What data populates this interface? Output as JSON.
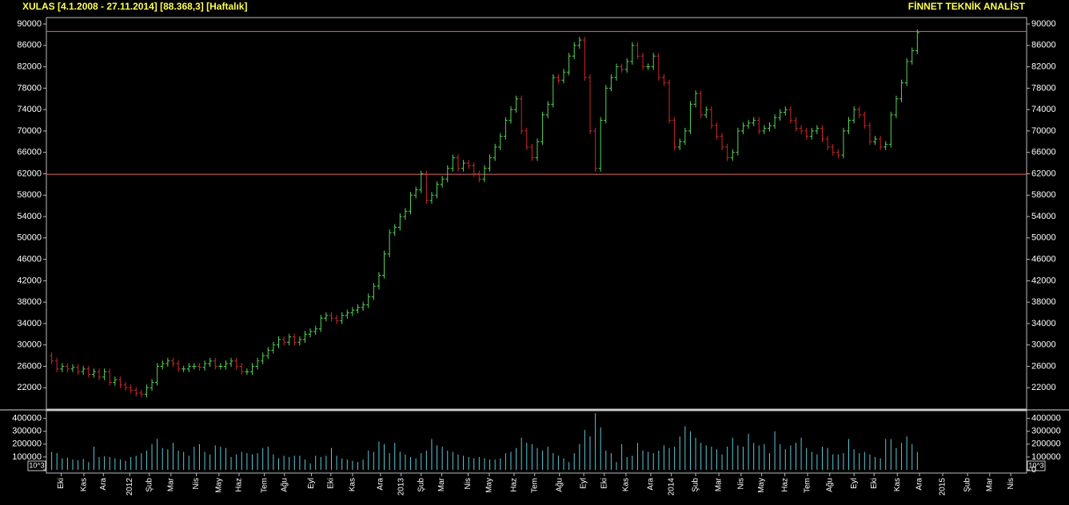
{
  "chart_data": {
    "type": "ohlc",
    "title": "XULAS  [4.1.2008 - 27.11.2014]  [88.368,3]  [Haftalık]",
    "subtitle": "FİNNET TEKNİK ANALİST",
    "up_color": "#55d855",
    "down_color": "#d02828",
    "volume_color": "#5cc8d8",
    "hline_color": "#e06a6a",
    "open": [
      28000,
      27000,
      25500,
      26000,
      25500,
      25800,
      25000,
      25500,
      24500,
      25000,
      24000,
      25000,
      23000,
      23500,
      22500,
      22000,
      21500,
      21000,
      20800,
      22000,
      23000,
      26000,
      26500,
      27000,
      26500,
      25500,
      25500,
      26000,
      26000,
      25800,
      26500,
      27000,
      26000,
      26000,
      26500,
      27000,
      26000,
      25000,
      25000,
      26000,
      27000,
      28000,
      29000,
      30000,
      31000,
      30500,
      31500,
      30500,
      31000,
      32000,
      32500,
      33000,
      35000,
      35500,
      35000,
      34500,
      35500,
      36000,
      36500,
      37000,
      37500,
      39000,
      41000,
      43000,
      47000,
      51000,
      52000,
      54000,
      55000,
      58000,
      59000,
      62000,
      57000,
      58000,
      60000,
      61000,
      63000,
      65000,
      63000,
      64000,
      63500,
      62000,
      61000,
      63000,
      65000,
      67000,
      69000,
      72000,
      74000,
      76000,
      70000,
      67000,
      65000,
      68000,
      73000,
      75000,
      80000,
      79500,
      81000,
      84000,
      86000,
      87000,
      80000,
      70000,
      63000,
      72000,
      78000,
      80000,
      82000,
      81500,
      83000,
      86000,
      84000,
      82000,
      82000,
      84000,
      80000,
      79000,
      72000,
      67000,
      68000,
      70000,
      75000,
      77000,
      73000,
      74000,
      71000,
      69000,
      67000,
      65000,
      66000,
      70000,
      71000,
      71500,
      72000,
      70000,
      70500,
      71000,
      72500,
      73500,
      74000,
      72000,
      70500,
      70000,
      69000,
      70000,
      70500,
      68500,
      67000,
      66000,
      65500,
      70000,
      72000,
      74000,
      73000,
      71000,
      68000,
      68500,
      67000,
      67500,
      73000,
      76000,
      79000,
      83000,
      85000
    ],
    "high": [
      28600,
      27600,
      26600,
      26600,
      26400,
      26400,
      26100,
      26100,
      25600,
      25600,
      25600,
      25600,
      24100,
      24100,
      23100,
      22600,
      22100,
      21600,
      22600,
      23600,
      26600,
      27100,
      27600,
      27600,
      27100,
      26100,
      26600,
      26600,
      26600,
      27100,
      27600,
      27600,
      26600,
      27100,
      27600,
      27600,
      26600,
      25600,
      26600,
      27600,
      28600,
      29600,
      30600,
      31600,
      31600,
      32100,
      32100,
      31600,
      32600,
      33100,
      33600,
      35600,
      36100,
      36100,
      35600,
      36100,
      36600,
      37100,
      37600,
      38100,
      39600,
      41600,
      43600,
      47600,
      51600,
      52600,
      54600,
      55600,
      58600,
      59600,
      62600,
      62600,
      58600,
      60600,
      61600,
      63600,
      65600,
      65600,
      64600,
      64600,
      64100,
      62600,
      63600,
      65600,
      67600,
      69600,
      72600,
      74600,
      76600,
      76600,
      70600,
      67600,
      68600,
      73600,
      75600,
      80600,
      80600,
      81600,
      84600,
      86600,
      87600,
      87600,
      80600,
      70600,
      72600,
      78600,
      80600,
      82600,
      82600,
      83600,
      86600,
      86600,
      84600,
      82600,
      84600,
      84600,
      80600,
      79600,
      72600,
      68600,
      70600,
      75600,
      77600,
      77600,
      74600,
      74600,
      71600,
      69600,
      67600,
      66600,
      70600,
      71600,
      72100,
      72600,
      72600,
      71100,
      71600,
      73100,
      74100,
      74600,
      74600,
      72600,
      71100,
      70600,
      70600,
      71100,
      71100,
      69100,
      67600,
      66600,
      70600,
      72600,
      74600,
      74600,
      73600,
      71600,
      69100,
      69100,
      68100,
      73600,
      76600,
      79600,
      83600,
      85600,
      89000
    ],
    "low": [
      26400,
      24900,
      24900,
      24900,
      24900,
      24400,
      24400,
      23900,
      23900,
      23400,
      23400,
      22400,
      22400,
      21900,
      21400,
      20900,
      20400,
      20200,
      20200,
      21400,
      22400,
      25400,
      25900,
      25900,
      24900,
      24900,
      24900,
      25400,
      25200,
      25200,
      25900,
      25400,
      25400,
      25400,
      25900,
      25400,
      24400,
      24400,
      24400,
      25400,
      26400,
      27400,
      28400,
      29400,
      29900,
      29900,
      29900,
      29900,
      30400,
      31400,
      31900,
      32400,
      34400,
      34400,
      33900,
      33900,
      34900,
      35400,
      35900,
      36400,
      36900,
      38400,
      40400,
      42400,
      46400,
      50400,
      51400,
      53400,
      54400,
      57400,
      58400,
      56400,
      56400,
      57400,
      59400,
      60400,
      62400,
      62400,
      62400,
      62900,
      61400,
      60400,
      60400,
      62400,
      64400,
      66400,
      68400,
      71400,
      73400,
      69400,
      66400,
      64400,
      64400,
      67400,
      72400,
      74400,
      78900,
      78900,
      80400,
      83400,
      85400,
      79400,
      69400,
      62400,
      62400,
      71400,
      77400,
      79400,
      80900,
      80900,
      82400,
      83400,
      81400,
      81400,
      81400,
      79400,
      78400,
      71400,
      66400,
      66400,
      67400,
      69400,
      74400,
      72400,
      72400,
      70400,
      68400,
      66400,
      64400,
      64400,
      65400,
      69400,
      70400,
      70900,
      69400,
      69400,
      69900,
      70400,
      71900,
      72900,
      71400,
      69900,
      69400,
      68400,
      68400,
      69400,
      67900,
      66400,
      65400,
      64900,
      64900,
      69400,
      71400,
      72400,
      70400,
      67400,
      67400,
      66400,
      66400,
      66900,
      72400,
      75400,
      78400,
      82400,
      84400
    ],
    "close": [
      27000,
      25500,
      26000,
      25500,
      25800,
      25000,
      25500,
      24500,
      25000,
      24000,
      25000,
      23000,
      23500,
      22500,
      22000,
      21500,
      21000,
      20800,
      22000,
      23000,
      26000,
      26500,
      27000,
      26500,
      25500,
      25500,
      26000,
      26000,
      25800,
      26500,
      27000,
      26000,
      26000,
      26500,
      27000,
      26000,
      25000,
      25000,
      26000,
      27000,
      28000,
      29000,
      30000,
      31000,
      30500,
      31500,
      30500,
      31000,
      32000,
      32500,
      33000,
      35000,
      35500,
      35000,
      34500,
      35500,
      36000,
      36500,
      37000,
      37500,
      39000,
      41000,
      43000,
      47000,
      51000,
      52000,
      54000,
      55000,
      58000,
      59000,
      62000,
      57000,
      58000,
      60000,
      61000,
      63000,
      65000,
      63000,
      64000,
      63500,
      62000,
      61000,
      63000,
      65000,
      67000,
      69000,
      72000,
      74000,
      76000,
      70000,
      67000,
      65000,
      68000,
      73000,
      75000,
      80000,
      79500,
      81000,
      84000,
      86000,
      87000,
      80000,
      70000,
      63000,
      72000,
      78000,
      80000,
      82000,
      81500,
      83000,
      86000,
      84000,
      82000,
      82000,
      84000,
      80000,
      79000,
      72000,
      67000,
      68000,
      70000,
      75000,
      77000,
      73000,
      74000,
      71000,
      69000,
      67000,
      65000,
      66000,
      70000,
      71000,
      71500,
      72000,
      70000,
      70500,
      71000,
      72500,
      73500,
      74000,
      72000,
      70500,
      70000,
      69000,
      70000,
      70500,
      68500,
      67000,
      66000,
      65500,
      70000,
      72000,
      74000,
      73000,
      71000,
      68000,
      68500,
      67000,
      67500,
      73000,
      76000,
      79000,
      83000,
      85000,
      88368.3
    ],
    "volume": [
      140000,
      130000,
      90000,
      95000,
      80000,
      75000,
      85000,
      60000,
      180000,
      100000,
      105000,
      100000,
      90000,
      80000,
      70000,
      100000,
      110000,
      130000,
      150000,
      200000,
      240000,
      170000,
      160000,
      210000,
      150000,
      140000,
      110000,
      180000,
      200000,
      140000,
      120000,
      190000,
      180000,
      170000,
      100000,
      120000,
      140000,
      130000,
      120000,
      130000,
      170000,
      180000,
      120000,
      90000,
      110000,
      100000,
      110000,
      110000,
      80000,
      50000,
      110000,
      100000,
      110000,
      170000,
      110000,
      90000,
      80000,
      70000,
      60000,
      80000,
      150000,
      140000,
      220000,
      200000,
      130000,
      210000,
      140000,
      120000,
      100000,
      90000,
      130000,
      150000,
      240000,
      190000,
      180000,
      150000,
      140000,
      120000,
      110000,
      100000,
      90000,
      100000,
      90000,
      80000,
      80000,
      90000,
      130000,
      140000,
      170000,
      250000,
      210000,
      200000,
      170000,
      150000,
      180000,
      130000,
      110000,
      90000,
      60000,
      130000,
      200000,
      310000,
      260000,
      440000,
      330000,
      150000,
      130000,
      60000,
      200000,
      100000,
      110000,
      210000,
      150000,
      140000,
      130000,
      150000,
      190000,
      170000,
      180000,
      260000,
      340000,
      300000,
      250000,
      210000,
      190000,
      180000,
      160000,
      120000,
      180000,
      250000,
      190000,
      180000,
      280000,
      210000,
      190000,
      200000,
      130000,
      300000,
      200000,
      160000,
      190000,
      210000,
      250000,
      170000,
      140000,
      120000,
      180000,
      170000,
      120000,
      120000,
      130000,
      240000,
      160000,
      130000,
      140000,
      120000,
      100000,
      90000,
      240000,
      240000,
      170000,
      210000,
      260000,
      200000,
      140000
    ],
    "hlines": [
      88600,
      61900
    ],
    "xlim": [
      -1,
      184.7
    ],
    "xticks": [
      {
        "value": 1.8,
        "label": "Eki"
      },
      {
        "value": 6.1,
        "label": "Kas"
      },
      {
        "value": 9.8,
        "label": "Ara"
      },
      {
        "value": 14.8,
        "label": "2012"
      },
      {
        "value": 18.5,
        "label": "Şub"
      },
      {
        "value": 22.6,
        "label": "Mar"
      },
      {
        "value": 27.4,
        "label": "Nis"
      },
      {
        "value": 31.7,
        "label": "May"
      },
      {
        "value": 35.5,
        "label": "Haz"
      },
      {
        "value": 40.3,
        "label": "Tem"
      },
      {
        "value": 44.1,
        "label": "Ağu"
      },
      {
        "value": 49.2,
        "label": "Eyl"
      },
      {
        "value": 52.9,
        "label": "Eki"
      },
      {
        "value": 57,
        "label": "Kas"
      },
      {
        "value": 62.3,
        "label": "Ara"
      },
      {
        "value": 66.2,
        "label": "2013"
      },
      {
        "value": 70,
        "label": "Şub"
      },
      {
        "value": 73.9,
        "label": "Mar"
      },
      {
        "value": 78.9,
        "label": "Nis"
      },
      {
        "value": 82.9,
        "label": "May"
      },
      {
        "value": 87.6,
        "label": "Haz"
      },
      {
        "value": 91.5,
        "label": "Tem"
      },
      {
        "value": 96.2,
        "label": "Ağu"
      },
      {
        "value": 100.8,
        "label": "Eyl"
      },
      {
        "value": 104.7,
        "label": "Eki"
      },
      {
        "value": 108.8,
        "label": "Kas"
      },
      {
        "value": 113.5,
        "label": "Ara"
      },
      {
        "value": 117.4,
        "label": "2014"
      },
      {
        "value": 122,
        "label": "Şub"
      },
      {
        "value": 126.4,
        "label": "Mar"
      },
      {
        "value": 130.6,
        "label": "Nis"
      },
      {
        "value": 134.5,
        "label": "May"
      },
      {
        "value": 138.9,
        "label": "Haz"
      },
      {
        "value": 143.2,
        "label": "Tem"
      },
      {
        "value": 147.4,
        "label": "Ağu"
      },
      {
        "value": 152,
        "label": "Eyl"
      },
      {
        "value": 155.8,
        "label": "Eki"
      },
      {
        "value": 160.2,
        "label": "Kas"
      },
      {
        "value": 164.4,
        "label": "Ara"
      },
      {
        "value": 168.8,
        "label": "2015"
      },
      {
        "value": 173.5,
        "label": "Şub"
      },
      {
        "value": 177.7,
        "label": "Mar"
      },
      {
        "value": 181.7,
        "label": "Nis"
      }
    ],
    "ylim": [
      18000,
      91200
    ],
    "yticks": [
      22000,
      26000,
      30000,
      34000,
      38000,
      42000,
      46000,
      50000,
      54000,
      58000,
      62000,
      66000,
      70000,
      74000,
      78000,
      82000,
      86000,
      90000
    ],
    "y2lim": [
      0,
      460000
    ],
    "y2ticks": [
      0,
      100000,
      200000,
      300000,
      400000
    ],
    "volume_unit": "10^3"
  }
}
